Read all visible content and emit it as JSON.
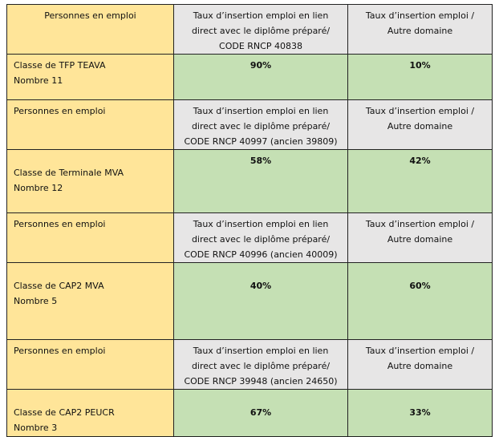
{
  "colors": {
    "label": "#FFE599",
    "header": "#E7E6E6",
    "value": "#C5E0B4"
  },
  "blocks": [
    {
      "header": {
        "label": "Personnes en emploi",
        "col2": [
          "Taux d’insertion emploi en lien",
          "direct avec le diplôme préparé/",
          "CODE RNCP 40838"
        ],
        "col3": [
          "Taux d’insertion emploi /",
          "Autre domaine"
        ]
      },
      "row": {
        "class": "Classe de TFP TEAVA",
        "count": "Nombre 11",
        "direct": "90%",
        "other": "10%"
      }
    },
    {
      "header": {
        "label": "Personnes en emploi",
        "col2": [
          "Taux d’insertion emploi en lien",
          "direct avec le diplôme préparé/",
          "CODE RNCP 40997 (ancien 39809)"
        ],
        "col3": [
          "Taux d’insertion emploi /",
          "Autre domaine"
        ]
      },
      "row": {
        "class": "Classe de Terminale MVA",
        "count": "Nombre 12",
        "direct": "58%",
        "other": "42%"
      }
    },
    {
      "header": {
        "label": "Personnes en emploi",
        "col2": [
          "Taux d’insertion emploi en lien",
          "direct avec le diplôme préparé/",
          "CODE RNCP 40996 (ancien 40009)"
        ],
        "col3": [
          "Taux d’insertion emploi /",
          "Autre domaine"
        ]
      },
      "row": {
        "class": "Classe de CAP2 MVA",
        "count": "Nombre 5",
        "direct": "40%",
        "other": "60%"
      }
    },
    {
      "header": {
        "label": "Personnes en emploi",
        "col2": [
          "Taux d’insertion emploi en lien",
          "direct avec le diplôme préparé/",
          "CODE RNCP 39948 (ancien 24650)"
        ],
        "col3": [
          "Taux d’insertion emploi /",
          "Autre domaine"
        ]
      },
      "row": {
        "class": "Classe de CAP2 PEUCR",
        "count": "Nombre 3",
        "direct": "67%",
        "other": "33%"
      }
    }
  ]
}
